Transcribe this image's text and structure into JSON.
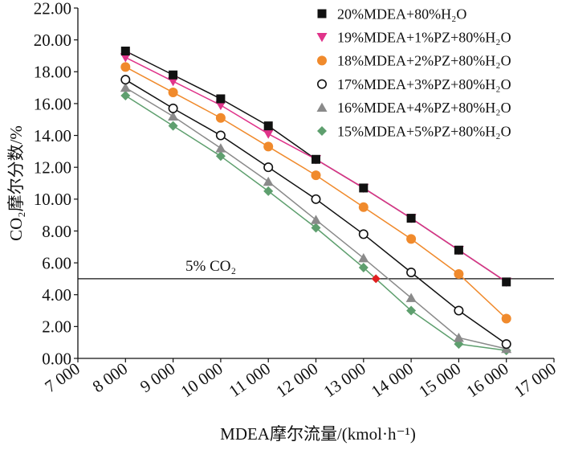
{
  "chart_data": {
    "type": "line",
    "x": [
      8000,
      9000,
      10000,
      11000,
      12000,
      13000,
      14000,
      15000,
      16000
    ],
    "xlabel": "MDEA摩尔流量/(kmol·h⁻¹)",
    "ylabel": "CO₂摩尔分数/%",
    "xlim": [
      7000,
      17000
    ],
    "ylim": [
      0,
      22
    ],
    "x_ticks": [
      {
        "value": 7000,
        "label": "7 000"
      },
      {
        "value": 8000,
        "label": "8 000"
      },
      {
        "value": 9000,
        "label": "9 000"
      },
      {
        "value": 10000,
        "label": "10 000"
      },
      {
        "value": 11000,
        "label": "11 000"
      },
      {
        "value": 12000,
        "label": "12 000"
      },
      {
        "value": 13000,
        "label": "13 000"
      },
      {
        "value": 14000,
        "label": "14 000"
      },
      {
        "value": 15000,
        "label": "15 000"
      },
      {
        "value": 16000,
        "label": "16 000"
      },
      {
        "value": 17000,
        "label": "17 000"
      }
    ],
    "y_ticks": [
      {
        "value": 0,
        "label": "0.00"
      },
      {
        "value": 2,
        "label": "2.00"
      },
      {
        "value": 4,
        "label": "4.00"
      },
      {
        "value": 6,
        "label": "6.00"
      },
      {
        "value": 8,
        "label": "8.00"
      },
      {
        "value": 10,
        "label": "10.00"
      },
      {
        "value": 12,
        "label": "12.00"
      },
      {
        "value": 14,
        "label": "14.00"
      },
      {
        "value": 16,
        "label": "16.00"
      },
      {
        "value": 18,
        "label": "18.00"
      },
      {
        "value": 20,
        "label": "20.00"
      },
      {
        "value": 22,
        "label": "22.00"
      }
    ],
    "grid": false,
    "legend_position": "top-right",
    "series": [
      {
        "name": "20%MDEA+80%H₂O",
        "marker": "square",
        "color": "#111111",
        "values": [
          19.3,
          17.8,
          16.3,
          14.6,
          12.5,
          10.7,
          8.8,
          6.8,
          4.8
        ]
      },
      {
        "name": "19%MDEA+1%PZ+80%H₂O",
        "marker": "triangle-down",
        "color": "#e0338a",
        "values": [
          18.9,
          17.4,
          15.9,
          14.1,
          12.5,
          10.7,
          8.8,
          6.8,
          4.8
        ]
      },
      {
        "name": "18%MDEA+2%PZ+80%H₂O",
        "marker": "circle",
        "color": "#f08a2c",
        "values": [
          18.3,
          16.7,
          15.1,
          13.3,
          11.5,
          9.5,
          7.5,
          5.3,
          2.5
        ]
      },
      {
        "name": "17%MDEA+3%PZ+80%H₂O",
        "marker": "circle-open",
        "color": "#111111",
        "values": [
          17.5,
          15.7,
          14.0,
          12.0,
          10.0,
          7.8,
          5.4,
          3.0,
          0.9
        ]
      },
      {
        "name": "16%MDEA+4%PZ+80%H₂O",
        "marker": "triangle-up",
        "color": "#8a8a8a",
        "values": [
          17.0,
          15.2,
          13.2,
          11.1,
          8.7,
          6.3,
          3.8,
          1.3,
          0.6
        ]
      },
      {
        "name": "15%MDEA+5%PZ+80%H₂O",
        "marker": "diamond",
        "color": "#5e9f6e",
        "values": [
          16.5,
          14.6,
          12.7,
          10.5,
          8.2,
          5.7,
          3.0,
          0.9,
          0.5
        ]
      }
    ],
    "reference_line": {
      "y": 5,
      "label": "5% CO₂"
    },
    "highlight_point": {
      "x": 13260,
      "y": 5.0,
      "marker": "diamond",
      "color": "#e02020"
    }
  }
}
